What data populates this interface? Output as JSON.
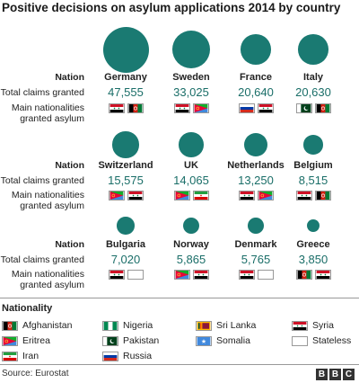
{
  "title": "Positive decisions on asylum applications 2014 by country",
  "row_labels": {
    "nation": "Nation",
    "claims": "Total claims granted",
    "nationalities": [
      "Main nationalities",
      "granted asylum"
    ]
  },
  "chart_data": {
    "type": "bubble",
    "title": "Positive decisions on asylum applications 2014 by country",
    "value_label": "Total claims granted",
    "countries": [
      {
        "name": "Germany",
        "value": 47555,
        "display": "47,555",
        "nationalities": [
          "Syria",
          "Afghanistan"
        ]
      },
      {
        "name": "Sweden",
        "value": 33025,
        "display": "33,025",
        "nationalities": [
          "Syria",
          "Eritrea"
        ]
      },
      {
        "name": "France",
        "value": 20640,
        "display": "20,640",
        "nationalities": [
          "Russia",
          "Syria"
        ]
      },
      {
        "name": "Italy",
        "value": 20630,
        "display": "20,630",
        "nationalities": [
          "Pakistan",
          "Afghanistan"
        ]
      },
      {
        "name": "Switzerland",
        "value": 15575,
        "display": "15,575",
        "nationalities": [
          "Eritrea",
          "Syria"
        ]
      },
      {
        "name": "UK",
        "value": 14065,
        "display": "14,065",
        "nationalities": [
          "Eritrea",
          "Iran"
        ]
      },
      {
        "name": "Netherlands",
        "value": 13250,
        "display": "13,250",
        "nationalities": [
          "Syria",
          "Eritrea"
        ]
      },
      {
        "name": "Belgium",
        "value": 8515,
        "display": "8,515",
        "nationalities": [
          "Syria",
          "Afghanistan"
        ]
      },
      {
        "name": "Bulgaria",
        "value": 7020,
        "display": "7,020",
        "nationalities": [
          "Syria",
          "Stateless"
        ]
      },
      {
        "name": "Norway",
        "value": 5865,
        "display": "5,865",
        "nationalities": [
          "Eritrea",
          "Syria"
        ]
      },
      {
        "name": "Denmark",
        "value": 5765,
        "display": "5,765",
        "nationalities": [
          "Syria",
          "Stateless"
        ]
      },
      {
        "name": "Greece",
        "value": 3850,
        "display": "3,850",
        "nationalities": [
          "Afghanistan",
          "Syria"
        ]
      }
    ]
  },
  "legend": {
    "title": "Nationality",
    "items": [
      "Afghanistan",
      "Eritrea",
      "Iran",
      "Nigeria",
      "Pakistan",
      "Russia",
      "Sri Lanka",
      "Somalia",
      "Syria",
      "Stateless"
    ]
  },
  "source": "Source: Eurostat",
  "logo_letters": [
    "B",
    "B",
    "C"
  ],
  "colors": {
    "bubble": "#1a7a72",
    "value_text": "#1a6e68"
  }
}
